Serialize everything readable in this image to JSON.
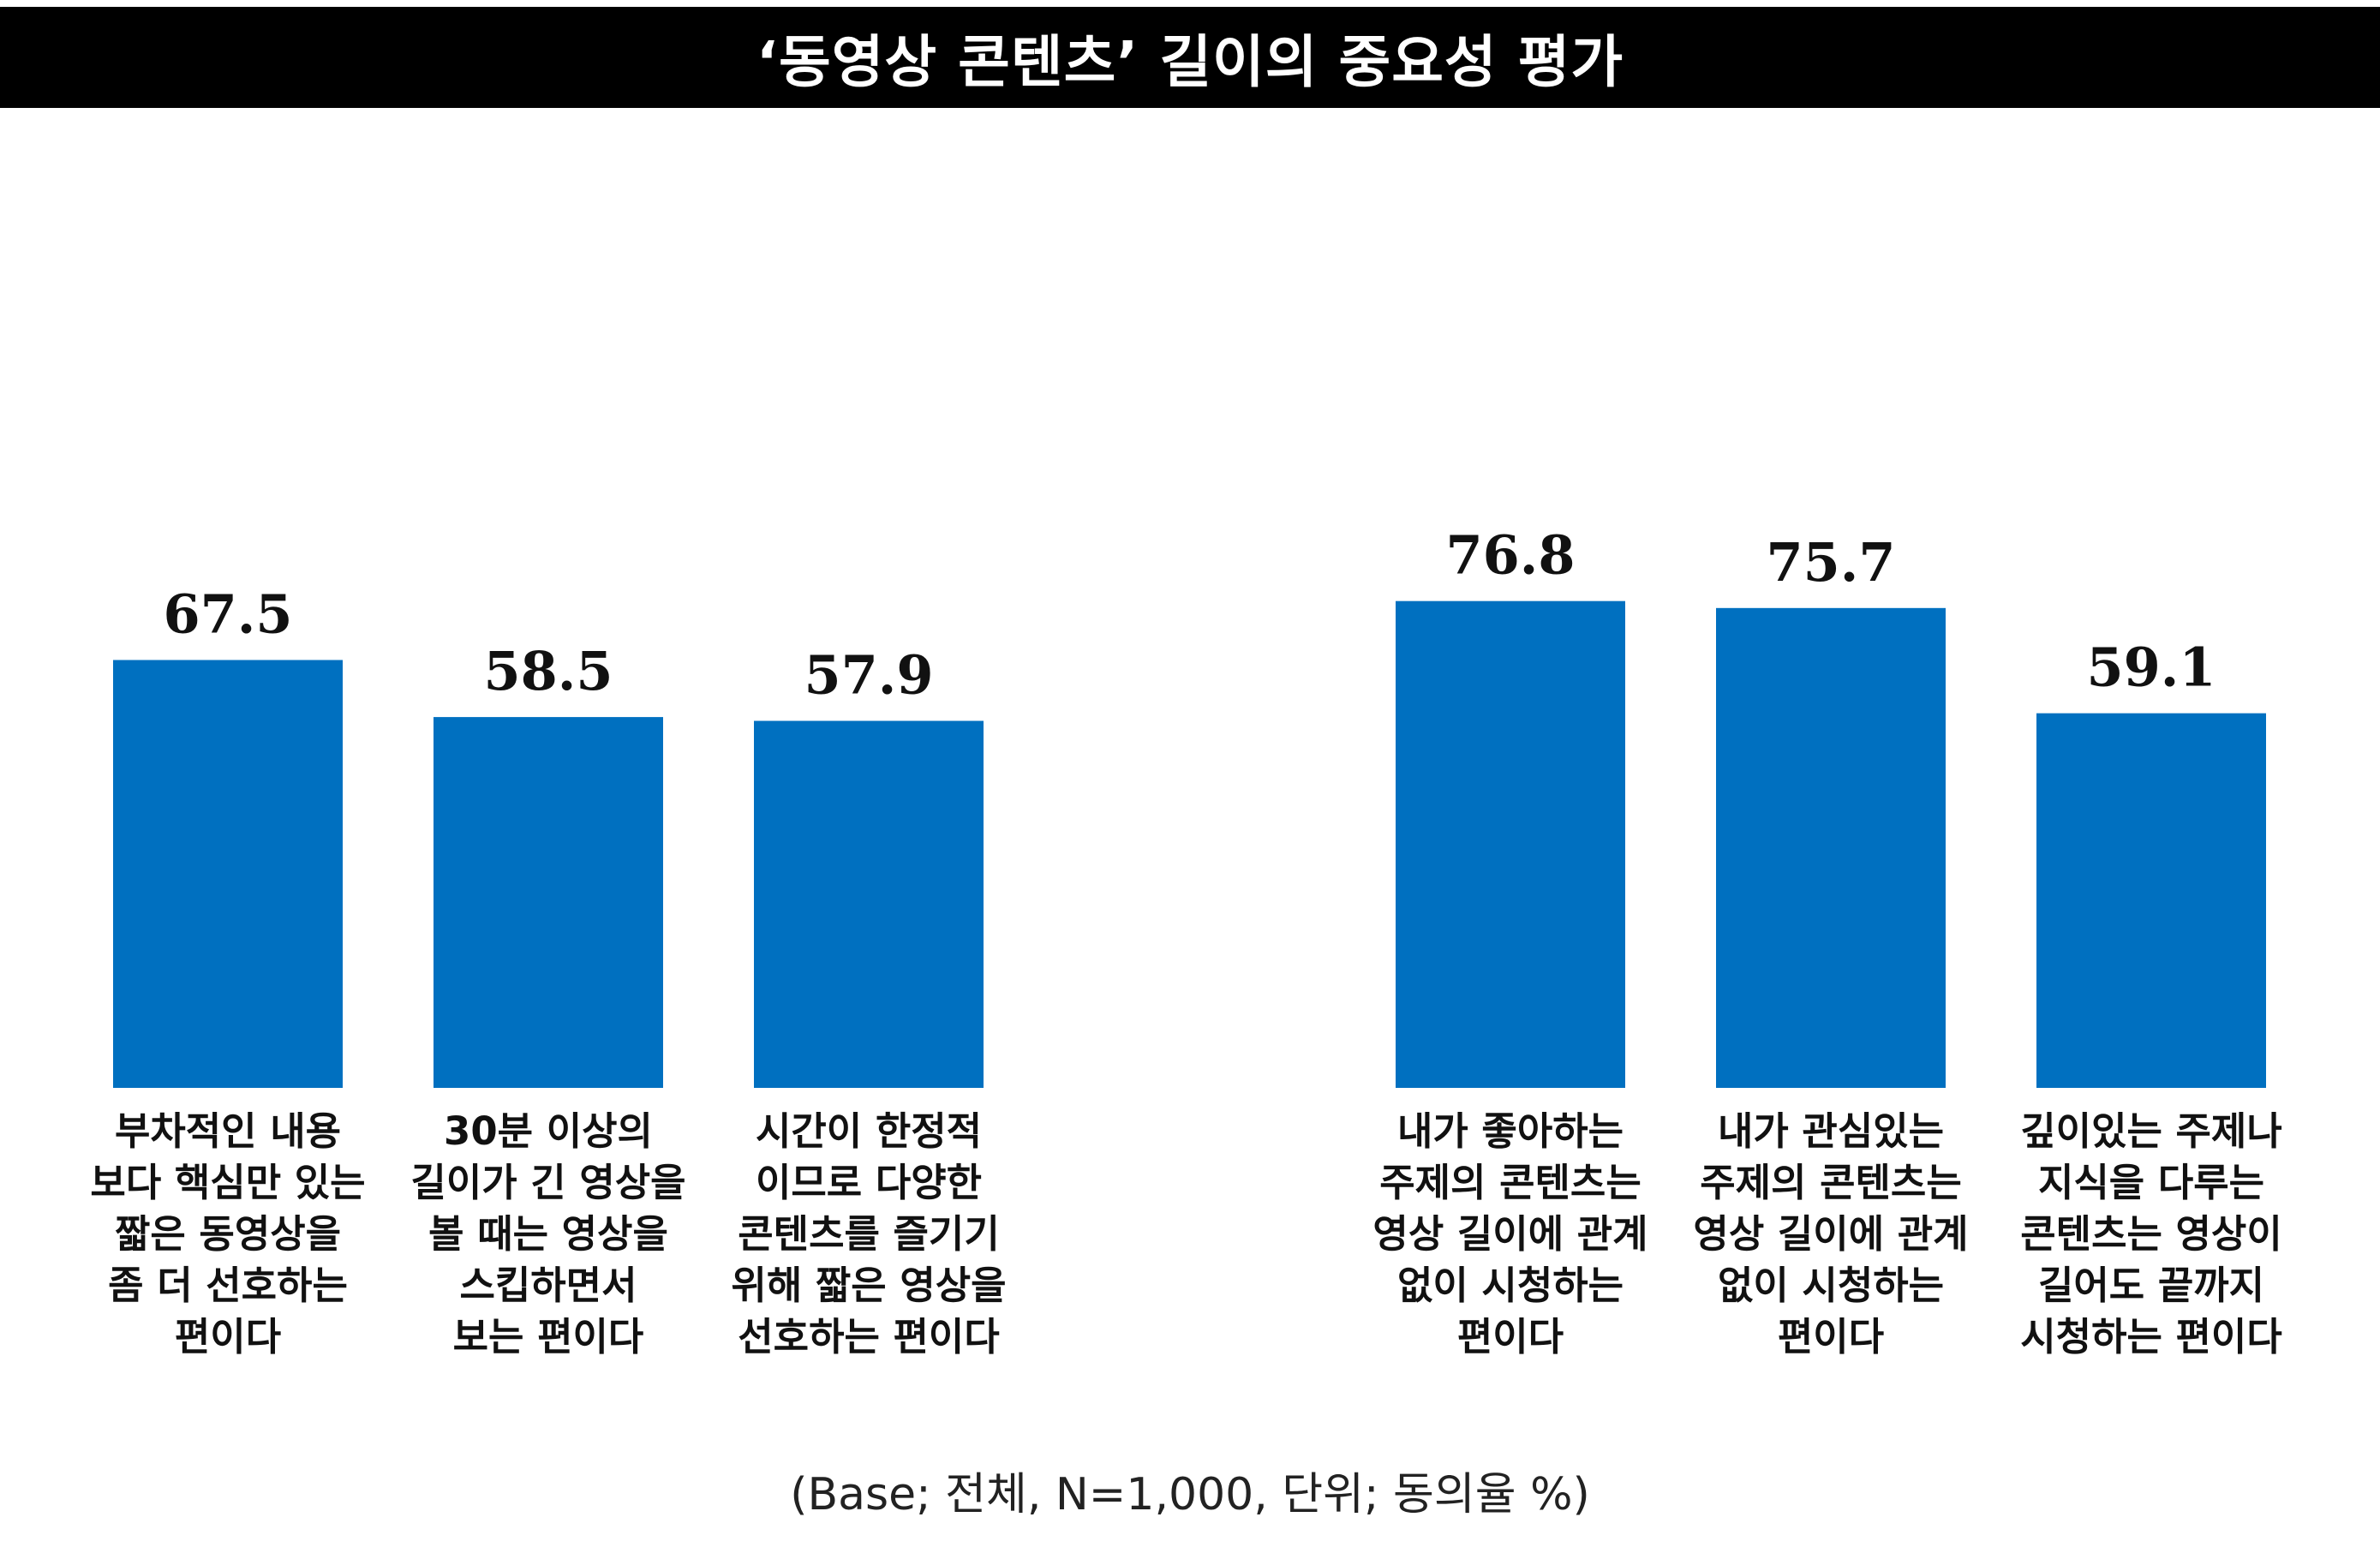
{
  "title": "‘동영상 콘텐츠’ 길이의 중요성 평가",
  "footnote": "(Base; 전체, N=1,000, 단위; 동의율 %)",
  "colors": {
    "bar": "#0070C0",
    "title_bg": "#000000",
    "title_text": "#FFFFFF"
  },
  "chart_data": {
    "type": "bar",
    "title": "‘동영상 콘텐츠’ 길이의 중요성 평가",
    "xlabel": "",
    "ylabel": "",
    "unit": "%",
    "grid": false,
    "ylim": [
      0,
      100
    ],
    "groups": [
      {
        "categories": [
          [
            "부차적인 내용",
            "보다 핵심만 있는",
            "짧은 동영상을",
            "좀 더 선호하는",
            "편이다"
          ],
          [
            "30분 이상의",
            "길이가 긴 영상을",
            "볼 때는 영상을",
            "스킵하면서",
            "보는 편이다"
          ],
          [
            "시간이 한정적",
            "이므로 다양한",
            "콘텐츠를 즐기기",
            "위해 짧은 영상을",
            "선호하는 편이다"
          ]
        ],
        "values": [
          67.5,
          58.5,
          57.9
        ],
        "value_labels": [
          "67.5",
          "58.5",
          "57.9"
        ]
      },
      {
        "categories": [
          [
            "내가 좋아하는",
            "주제의 콘텐츠는",
            "영상 길이에 관계",
            "없이 시청하는",
            "편이다"
          ],
          [
            "내가 관심있는",
            "주제의 콘텐츠는",
            "영상 길이에 관계",
            "없이 시청하는",
            "편이다"
          ],
          [
            "깊이있는 주제나",
            "지식을 다루는",
            "콘텐츠는 영상이",
            "길어도 끝까지",
            "시청하는 편이다"
          ]
        ],
        "values": [
          76.8,
          75.7,
          59.1
        ],
        "value_labels": [
          "76.8",
          "75.7",
          "59.1"
        ]
      }
    ]
  }
}
